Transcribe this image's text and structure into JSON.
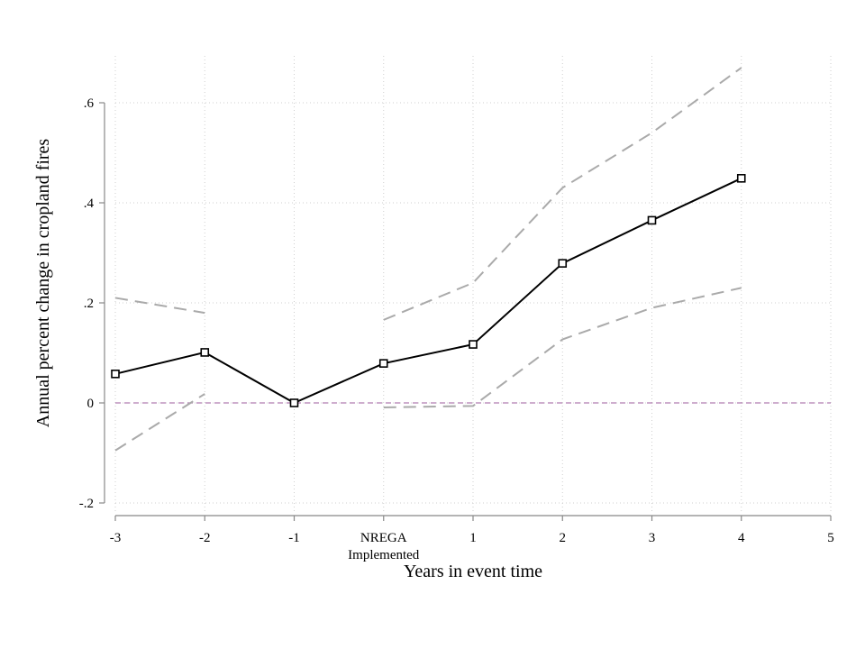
{
  "chart_data": {
    "type": "line",
    "xlabel": "Years in event time",
    "ylabel": "Annual percent change in cropland fires",
    "xlim": [
      -3,
      5
    ],
    "ylim": [
      -0.2,
      0.6
    ],
    "x_ticks": [
      {
        "value": -3,
        "label": "-3"
      },
      {
        "value": -2,
        "label": "-2"
      },
      {
        "value": -1,
        "label": "-1"
      },
      {
        "value": 0,
        "label": "NREGA",
        "label2": "Implemented"
      },
      {
        "value": 1,
        "label": "1"
      },
      {
        "value": 2,
        "label": "2"
      },
      {
        "value": 3,
        "label": "3"
      },
      {
        "value": 4,
        "label": "4"
      },
      {
        "value": 5,
        "label": "5"
      }
    ],
    "y_ticks": [
      {
        "value": -0.2,
        "label": "-.2"
      },
      {
        "value": 0,
        "label": "0"
      },
      {
        "value": 0.2,
        "label": ".2"
      },
      {
        "value": 0.4,
        "label": ".4"
      },
      {
        "value": 0.6,
        "label": ".6"
      }
    ],
    "grid": true,
    "reference_line": {
      "y": 0,
      "color": "#b07cb0"
    },
    "series": [
      {
        "role": "estimate",
        "color": "#000000",
        "marker": "square",
        "x": [
          -3,
          -2,
          -1,
          0,
          1,
          2,
          3,
          4
        ],
        "values": [
          0.058,
          0.101,
          0.0,
          0.079,
          0.117,
          0.279,
          0.365,
          0.449
        ]
      },
      {
        "role": "upper-ci",
        "color": "#aaaaaa",
        "style": "dashed",
        "segments": [
          {
            "x": [
              -3,
              -2
            ],
            "values": [
              0.21,
              0.18
            ]
          },
          {
            "x": [
              0,
              1,
              2,
              3,
              4
            ],
            "values": [
              0.166,
              0.24,
              0.43,
              0.54,
              0.67
            ]
          }
        ]
      },
      {
        "role": "lower-ci",
        "color": "#aaaaaa",
        "style": "dashed",
        "segments": [
          {
            "x": [
              -3,
              -2
            ],
            "values": [
              -0.095,
              0.018
            ]
          },
          {
            "x": [
              0,
              1,
              2,
              3,
              4
            ],
            "values": [
              -0.009,
              -0.006,
              0.127,
              0.19,
              0.23
            ]
          }
        ]
      }
    ]
  }
}
